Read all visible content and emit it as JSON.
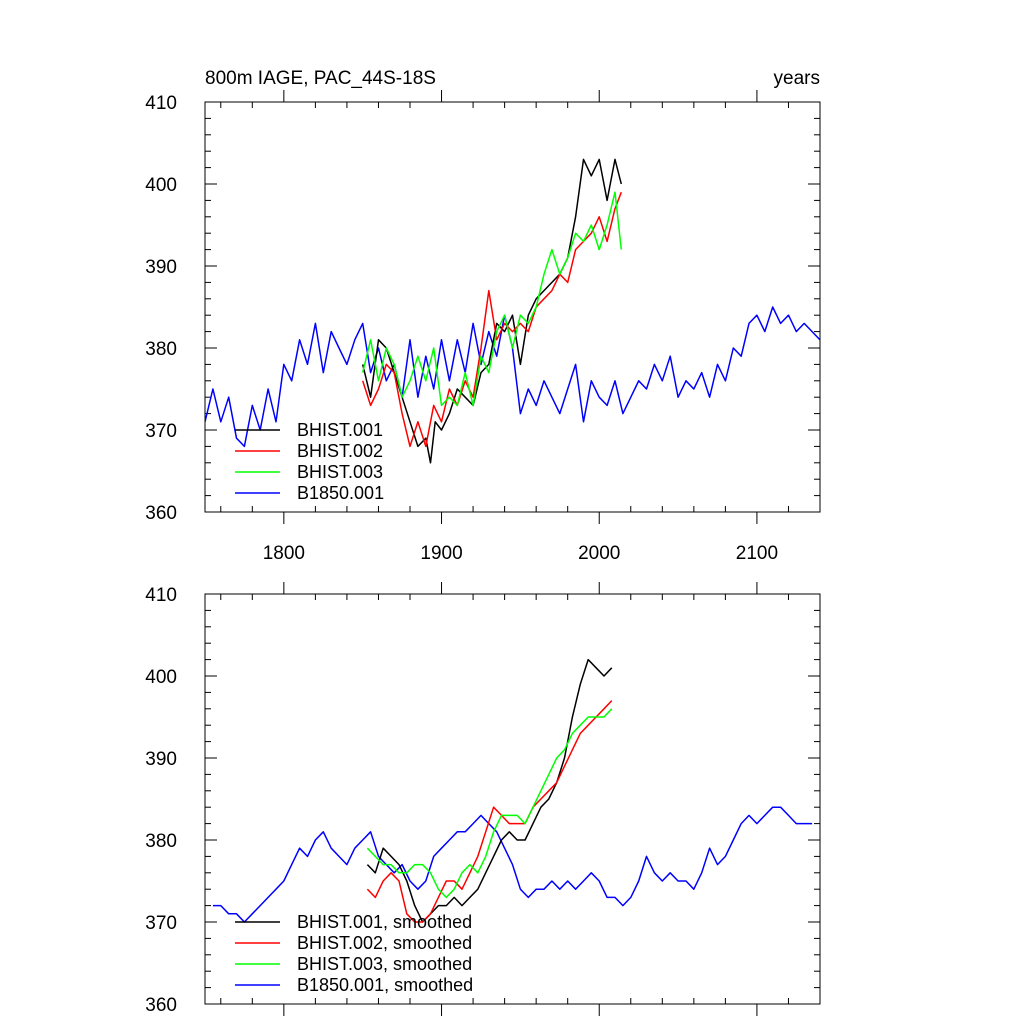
{
  "chart_data": [
    {
      "type": "line",
      "title": "800m IAGE, PAC_44S-18S",
      "title_right": "years",
      "xlim": [
        1750,
        2140
      ],
      "ylim": [
        360,
        410
      ],
      "xticks": [
        1800,
        1900,
        2000,
        2100
      ],
      "xtick_labels": [
        "1800",
        "1900",
        "2000",
        "2100"
      ],
      "yticks": [
        360,
        370,
        380,
        390,
        400,
        410
      ],
      "ytick_labels": [
        "360",
        "370",
        "380",
        "390",
        "400",
        "410"
      ],
      "legend_position": "bottom-left",
      "series": [
        {
          "name": "BHIST.001",
          "color": "#000000",
          "x": [
            1850,
            1855,
            1860,
            1865,
            1870,
            1875,
            1880,
            1885,
            1890,
            1893,
            1896,
            1900,
            1905,
            1910,
            1915,
            1920,
            1925,
            1930,
            1935,
            1940,
            1945,
            1950,
            1955,
            1960,
            1965,
            1970,
            1975,
            1980,
            1985,
            1990,
            1995,
            2000,
            2005,
            2010,
            2014
          ],
          "y": [
            378,
            374,
            381,
            380,
            377,
            374,
            371,
            368,
            369,
            366,
            371,
            370,
            372,
            375,
            374,
            373,
            377,
            378,
            383,
            382,
            384,
            378,
            384,
            386,
            387,
            388,
            389,
            391,
            396,
            403,
            401,
            403,
            398,
            403,
            400
          ]
        },
        {
          "name": "BHIST.002",
          "color": "#ff0000",
          "x": [
            1850,
            1855,
            1860,
            1865,
            1870,
            1875,
            1880,
            1885,
            1890,
            1895,
            1900,
            1905,
            1910,
            1915,
            1920,
            1925,
            1930,
            1935,
            1940,
            1945,
            1950,
            1955,
            1960,
            1965,
            1970,
            1975,
            1980,
            1985,
            1990,
            1995,
            2000,
            2005,
            2010,
            2014
          ],
          "y": [
            376,
            373,
            375,
            378,
            377,
            372,
            368,
            371,
            368,
            373,
            371,
            375,
            373,
            376,
            374,
            380,
            387,
            381,
            383,
            382,
            383,
            382,
            385,
            386,
            387,
            389,
            388,
            392,
            393,
            394,
            396,
            393,
            397,
            399
          ]
        },
        {
          "name": "BHIST.003",
          "color": "#00ff00",
          "x": [
            1850,
            1855,
            1860,
            1865,
            1870,
            1875,
            1880,
            1885,
            1890,
            1895,
            1900,
            1905,
            1910,
            1915,
            1920,
            1925,
            1930,
            1935,
            1940,
            1945,
            1950,
            1955,
            1960,
            1965,
            1970,
            1975,
            1980,
            1985,
            1990,
            1995,
            2000,
            2005,
            2010,
            2014
          ],
          "y": [
            377,
            381,
            376,
            380,
            378,
            374,
            376,
            379,
            376,
            380,
            373,
            374,
            373,
            377,
            373,
            379,
            377,
            382,
            384,
            380,
            384,
            383,
            385,
            389,
            392,
            389,
            391,
            394,
            393,
            395,
            392,
            395,
            399,
            392
          ]
        },
        {
          "name": "B1850.001",
          "color": "#0000ff",
          "x": [
            1750,
            1755,
            1760,
            1765,
            1770,
            1775,
            1780,
            1785,
            1790,
            1795,
            1800,
            1805,
            1810,
            1815,
            1820,
            1825,
            1830,
            1835,
            1840,
            1845,
            1850,
            1855,
            1860,
            1865,
            1870,
            1875,
            1880,
            1885,
            1890,
            1895,
            1900,
            1905,
            1910,
            1915,
            1920,
            1925,
            1930,
            1935,
            1940,
            1945,
            1950,
            1955,
            1960,
            1965,
            1970,
            1975,
            1980,
            1985,
            1990,
            1995,
            2000,
            2005,
            2010,
            2015,
            2020,
            2025,
            2030,
            2035,
            2040,
            2045,
            2050,
            2055,
            2060,
            2065,
            2070,
            2075,
            2080,
            2085,
            2090,
            2095,
            2100,
            2105,
            2110,
            2115,
            2120,
            2125,
            2130,
            2135,
            2140
          ],
          "y": [
            371,
            375,
            371,
            374,
            369,
            368,
            373,
            370,
            375,
            371,
            378,
            376,
            381,
            378,
            383,
            377,
            382,
            380,
            378,
            381,
            383,
            377,
            380,
            376,
            378,
            374,
            381,
            374,
            379,
            375,
            381,
            376,
            381,
            377,
            383,
            378,
            382,
            379,
            384,
            380,
            372,
            375,
            373,
            376,
            374,
            372,
            375,
            378,
            371,
            376,
            374,
            373,
            376,
            372,
            374,
            376,
            375,
            378,
            376,
            379,
            374,
            376,
            375,
            377,
            374,
            378,
            376,
            380,
            379,
            383,
            384,
            382,
            385,
            383,
            384,
            382,
            383,
            382,
            381
          ]
        }
      ]
    },
    {
      "type": "line",
      "title": "",
      "xlim": [
        1750,
        2140
      ],
      "ylim": [
        360,
        410
      ],
      "xticks": [
        1800,
        1900,
        2000,
        2100
      ],
      "yticks": [
        360,
        370,
        380,
        390,
        400,
        410
      ],
      "ytick_labels": [
        "360",
        "370",
        "380",
        "390",
        "400",
        "410"
      ],
      "legend_position": "bottom-left",
      "series": [
        {
          "name": "BHIST.001, smoothed",
          "color": "#000000",
          "x": [
            1853,
            1858,
            1863,
            1868,
            1873,
            1878,
            1883,
            1888,
            1893,
            1898,
            1903,
            1908,
            1913,
            1918,
            1923,
            1928,
            1933,
            1938,
            1943,
            1948,
            1953,
            1958,
            1963,
            1968,
            1973,
            1978,
            1983,
            1988,
            1993,
            1998,
            2003,
            2008
          ],
          "y": [
            377,
            376,
            379,
            378,
            377,
            375,
            372,
            370,
            371,
            372,
            372,
            373,
            372,
            373,
            374,
            376,
            378,
            380,
            381,
            380,
            380,
            382,
            384,
            385,
            387,
            390,
            395,
            399,
            402,
            401,
            400,
            401
          ]
        },
        {
          "name": "BHIST.002, smoothed",
          "color": "#ff0000",
          "x": [
            1853,
            1858,
            1863,
            1868,
            1873,
            1878,
            1883,
            1888,
            1893,
            1898,
            1903,
            1908,
            1913,
            1918,
            1923,
            1928,
            1933,
            1938,
            1943,
            1948,
            1953,
            1958,
            1963,
            1968,
            1973,
            1978,
            1983,
            1988,
            1993,
            1998,
            2003,
            2008
          ],
          "y": [
            374,
            373,
            375,
            376,
            375,
            371,
            370,
            370,
            371,
            373,
            375,
            375,
            374,
            376,
            378,
            381,
            384,
            383,
            382,
            382,
            382,
            384,
            385,
            386,
            387,
            389,
            391,
            393,
            394,
            395,
            396,
            397
          ]
        },
        {
          "name": "BHIST.003, smoothed",
          "color": "#00ff00",
          "x": [
            1853,
            1858,
            1863,
            1868,
            1873,
            1878,
            1883,
            1888,
            1893,
            1898,
            1903,
            1908,
            1913,
            1918,
            1923,
            1928,
            1933,
            1938,
            1943,
            1948,
            1953,
            1958,
            1963,
            1968,
            1973,
            1978,
            1983,
            1988,
            1993,
            1998,
            2003,
            2008
          ],
          "y": [
            379,
            378,
            377,
            377,
            376,
            376,
            377,
            377,
            376,
            374,
            373,
            374,
            376,
            377,
            376,
            378,
            381,
            383,
            383,
            383,
            382,
            384,
            386,
            388,
            390,
            391,
            393,
            394,
            395,
            395,
            395,
            396
          ]
        },
        {
          "name": "B1850.001, smoothed",
          "color": "#0000ff",
          "x": [
            1755,
            1760,
            1765,
            1770,
            1775,
            1780,
            1785,
            1790,
            1795,
            1800,
            1805,
            1810,
            1815,
            1820,
            1825,
            1830,
            1835,
            1840,
            1845,
            1850,
            1855,
            1860,
            1865,
            1870,
            1875,
            1880,
            1885,
            1890,
            1895,
            1900,
            1905,
            1910,
            1915,
            1920,
            1925,
            1930,
            1935,
            1940,
            1945,
            1950,
            1955,
            1960,
            1965,
            1970,
            1975,
            1980,
            1985,
            1990,
            1995,
            2000,
            2005,
            2010,
            2015,
            2020,
            2025,
            2030,
            2035,
            2040,
            2045,
            2050,
            2055,
            2060,
            2065,
            2070,
            2075,
            2080,
            2085,
            2090,
            2095,
            2100,
            2105,
            2110,
            2115,
            2120,
            2125,
            2130,
            2135
          ],
          "y": [
            372,
            372,
            371,
            371,
            370,
            371,
            372,
            373,
            374,
            375,
            377,
            379,
            378,
            380,
            381,
            379,
            378,
            377,
            379,
            380,
            381,
            378,
            377,
            376,
            377,
            375,
            374,
            375,
            378,
            379,
            380,
            381,
            381,
            382,
            383,
            382,
            381,
            379,
            377,
            374,
            373,
            374,
            374,
            375,
            374,
            375,
            374,
            375,
            376,
            375,
            373,
            373,
            372,
            373,
            375,
            378,
            376,
            375,
            376,
            375,
            375,
            374,
            376,
            379,
            377,
            378,
            380,
            382,
            383,
            382,
            383,
            384,
            384,
            383,
            382,
            382,
            382
          ]
        }
      ]
    }
  ]
}
